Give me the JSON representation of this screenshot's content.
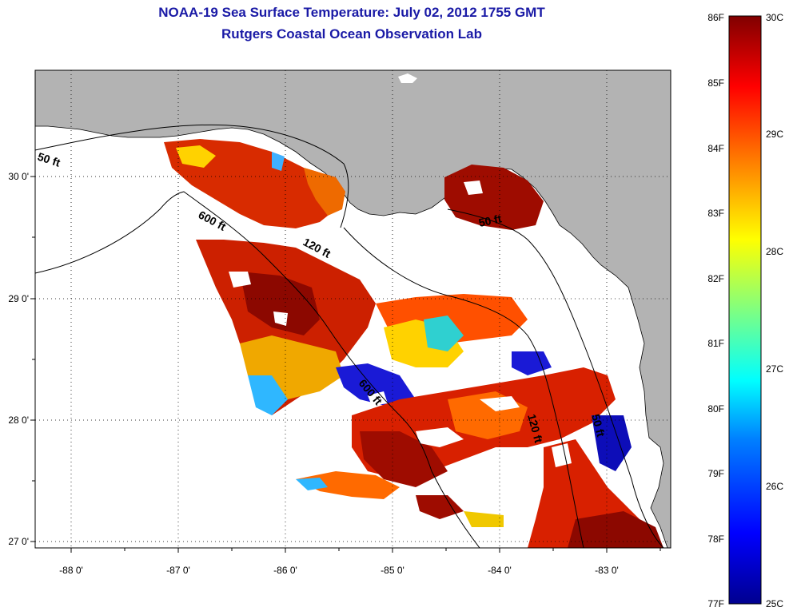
{
  "title": {
    "line1": "NOAA-19 Sea Surface Temperature:  July 02, 2012 1755 GMT",
    "line2": "Rutgers Coastal Ocean Observation Lab"
  },
  "axes": {
    "lon_labels": [
      "-88 0'",
      "-87 0'",
      "-86 0'",
      "-85 0'",
      "-84 0'",
      "-83 0'"
    ],
    "lat_labels": [
      "30 0'",
      "29 0'",
      "28 0'",
      "27 0'"
    ]
  },
  "isobaths": [
    "50 ft",
    "600 ft",
    "120 ft",
    "50 ft",
    "600 ft",
    "120 ft",
    "50 ft"
  ],
  "colorbar": {
    "fahrenheit": [
      "86F",
      "85F",
      "84F",
      "83F",
      "82F",
      "81F",
      "80F",
      "79F",
      "78F",
      "77F"
    ],
    "celsius": [
      "30C",
      "29C",
      "28C",
      "27C",
      "26C",
      "25C"
    ]
  },
  "colors": {
    "title": "#1a1aa6",
    "land": "#b3b3b3",
    "no_data": "#ffffff",
    "scale": [
      "#00008f",
      "#0000ff",
      "#0080ff",
      "#00ffff",
      "#80ff80",
      "#ffff00",
      "#ff8000",
      "#ff0000",
      "#800000"
    ]
  }
}
